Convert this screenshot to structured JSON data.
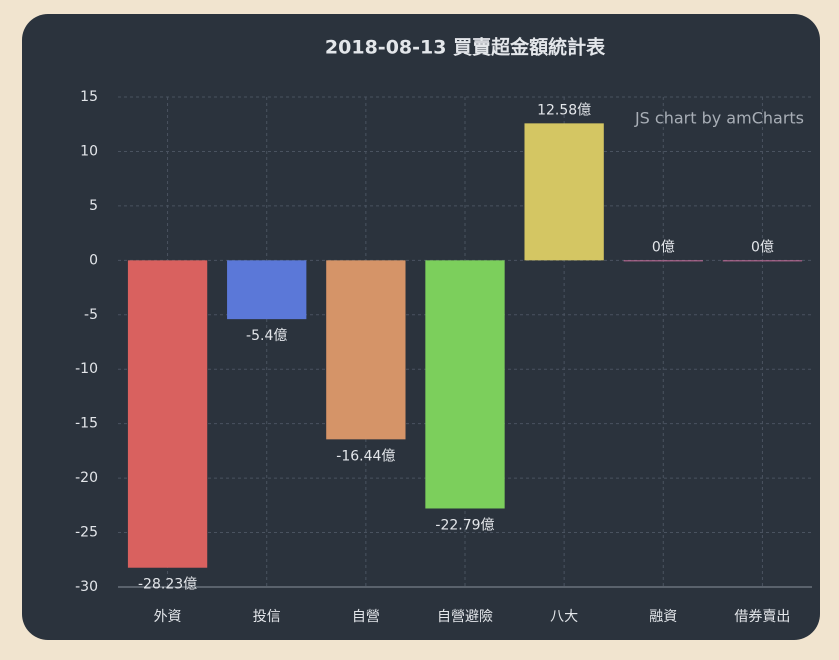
{
  "chart_data": {
    "type": "bar",
    "title": "2018-08-13 買賣超金額統計表",
    "watermark": "JS chart by amCharts",
    "categories": [
      "外資",
      "投信",
      "自營",
      "自營避險",
      "八大",
      "融資",
      "借券賣出"
    ],
    "values": [
      -28.23,
      -5.4,
      -16.44,
      -22.79,
      12.58,
      0,
      0
    ],
    "value_labels": [
      "-28.23億",
      "-5.4億",
      "-16.44億",
      "-22.79億",
      "12.58億",
      "0億",
      "0億"
    ],
    "colors": [
      "#d9615f",
      "#5b78d8",
      "#d59468",
      "#7ccf5c",
      "#d4c663",
      "#c86e9b",
      "#c86e9b"
    ],
    "ylim": [
      -30,
      15
    ],
    "yticks": [
      15,
      10,
      5,
      0,
      -5,
      -10,
      -15,
      -20,
      -25,
      -30
    ],
    "grid": true
  }
}
